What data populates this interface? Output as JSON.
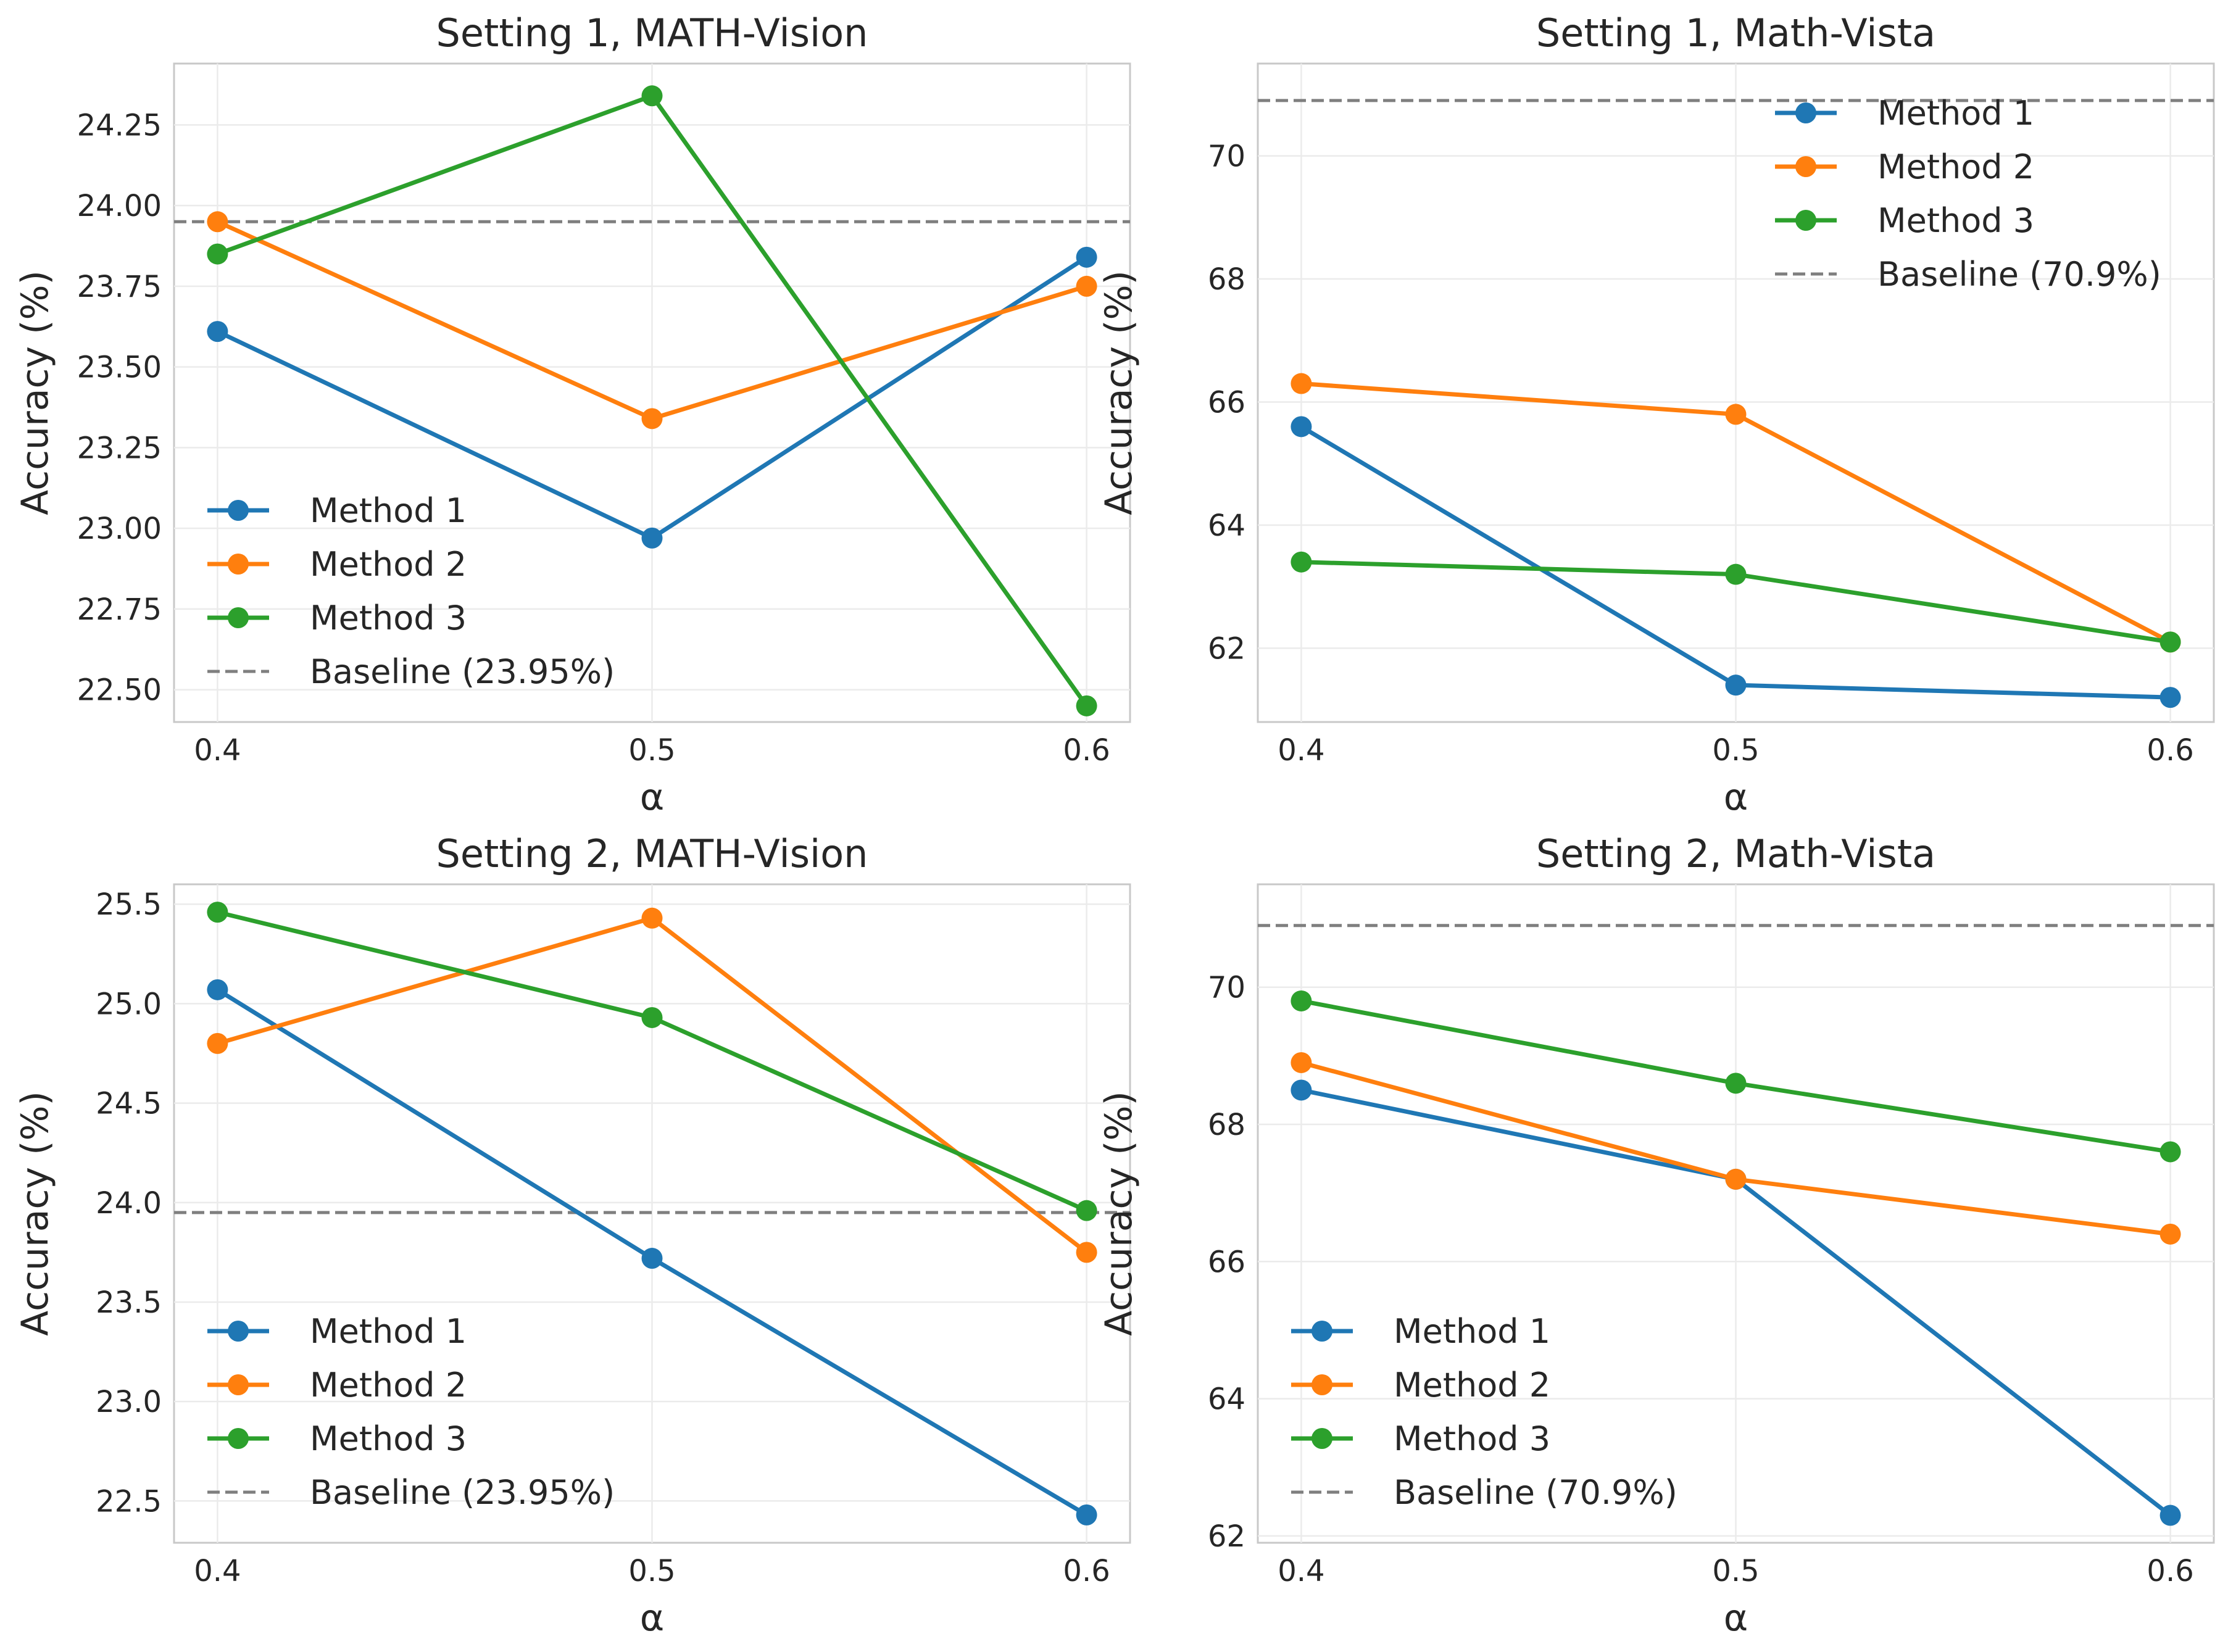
{
  "colors": {
    "method1": "#1f77b4",
    "method2": "#ff7f0e",
    "method3": "#2ca02c",
    "baseline": "#7f7f7f"
  },
  "chart_data": [
    {
      "type": "line",
      "title": "Setting 1, MATH-Vision",
      "xlabel": "α",
      "ylabel": "Accuracy (%)",
      "x": [
        0.4,
        0.5,
        0.6
      ],
      "xticks": [
        "0.4",
        "0.5",
        "0.6"
      ],
      "xlim": [
        0.39,
        0.61
      ],
      "ylim": [
        22.4,
        24.44
      ],
      "yticks": [
        "22.50",
        "22.75",
        "23.00",
        "23.25",
        "23.50",
        "23.75",
        "24.00",
        "24.25"
      ],
      "series": [
        {
          "name": "Method 1",
          "values": [
            23.61,
            22.97,
            23.84
          ]
        },
        {
          "name": "Method 2",
          "values": [
            23.95,
            23.34,
            23.75
          ]
        },
        {
          "name": "Method 3",
          "values": [
            23.85,
            24.34,
            22.45
          ]
        }
      ],
      "baseline": {
        "name": "Baseline (23.95%)",
        "value": 23.95
      },
      "legend": "lower-left"
    },
    {
      "type": "line",
      "title": "Setting 1, Math-Vista",
      "xlabel": "α",
      "ylabel": "Accuracy (%)",
      "x": [
        0.4,
        0.5,
        0.6
      ],
      "xticks": [
        "0.4",
        "0.5",
        "0.6"
      ],
      "xlim": [
        0.39,
        0.61
      ],
      "ylim": [
        60.8,
        71.5
      ],
      "yticks": [
        "62",
        "64",
        "66",
        "68",
        "70"
      ],
      "series": [
        {
          "name": "Method 1",
          "values": [
            65.6,
            61.4,
            61.2
          ]
        },
        {
          "name": "Method 2",
          "values": [
            66.3,
            65.8,
            62.1
          ]
        },
        {
          "name": "Method 3",
          "values": [
            63.4,
            63.2,
            62.1
          ]
        }
      ],
      "baseline": {
        "name": "Baseline (70.9%)",
        "value": 70.9
      },
      "legend": "upper-right"
    },
    {
      "type": "line",
      "title": "Setting 2, MATH-Vision",
      "xlabel": "α",
      "ylabel": "Accuracy (%)",
      "x": [
        0.4,
        0.5,
        0.6
      ],
      "xticks": [
        "0.4",
        "0.5",
        "0.6"
      ],
      "xlim": [
        0.39,
        0.61
      ],
      "ylim": [
        22.29,
        25.6
      ],
      "yticks": [
        "22.5",
        "23.0",
        "23.5",
        "24.0",
        "24.5",
        "25.0",
        "25.5"
      ],
      "series": [
        {
          "name": "Method 1",
          "values": [
            25.07,
            23.72,
            22.43
          ]
        },
        {
          "name": "Method 2",
          "values": [
            24.8,
            25.43,
            23.75
          ]
        },
        {
          "name": "Method 3",
          "values": [
            25.46,
            24.93,
            23.96
          ]
        }
      ],
      "baseline": {
        "name": "Baseline (23.95%)",
        "value": 23.95
      },
      "legend": "lower-left"
    },
    {
      "type": "line",
      "title": "Setting 2, Math-Vista",
      "xlabel": "α",
      "ylabel": "Accuracy (%)",
      "x": [
        0.4,
        0.5,
        0.6
      ],
      "xticks": [
        "0.4",
        "0.5",
        "0.6"
      ],
      "xlim": [
        0.39,
        0.61
      ],
      "ylim": [
        61.9,
        71.5
      ],
      "yticks": [
        "62",
        "64",
        "66",
        "68",
        "70"
      ],
      "series": [
        {
          "name": "Method 1",
          "values": [
            68.5,
            67.2,
            62.3
          ]
        },
        {
          "name": "Method 2",
          "values": [
            68.9,
            67.2,
            66.4
          ]
        },
        {
          "name": "Method 3",
          "values": [
            69.8,
            68.6,
            67.6
          ]
        }
      ],
      "baseline": {
        "name": "Baseline (70.9%)",
        "value": 70.9
      },
      "legend": "lower-left"
    }
  ]
}
